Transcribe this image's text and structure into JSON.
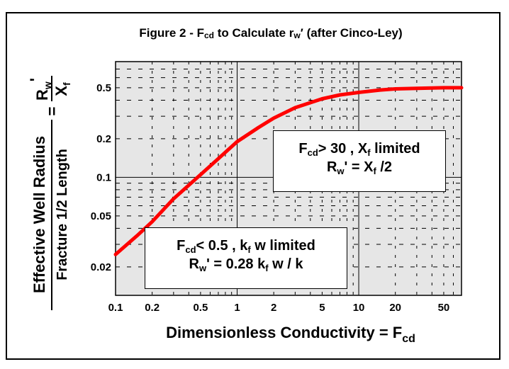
{
  "chart_data": {
    "type": "line",
    "title": {
      "prefix": "Figure 2 -  F",
      "prefix_sub": "cd",
      "middle": " to Calculate r",
      "middle_sub": "w",
      "suffix": "′ (after Cinco-Ley)"
    },
    "xlabel": {
      "main": "Dimensionless Conductivity = F",
      "sub": "cd"
    },
    "ylabel": {
      "line1": "Effective Well Radius",
      "line2": "Fracture 1/2 Length",
      "eq": "=",
      "numerator": "R",
      "numerator_sub": "w",
      "numerator_mark": "'",
      "denominator": "X",
      "denominator_sub": "f"
    },
    "x_scale": "log",
    "y_scale": "log",
    "xlim": [
      0.1,
      70
    ],
    "ylim": [
      0.012,
      0.8
    ],
    "x_ticks": [
      0.1,
      0.2,
      0.5,
      1,
      2,
      5,
      10,
      20,
      50
    ],
    "x_tick_labels": [
      "0.1",
      "0.2",
      "0.5",
      "1",
      "2",
      "5",
      "10",
      "20",
      "50"
    ],
    "y_ticks": [
      0.02,
      0.05,
      0.1,
      0.2,
      0.5
    ],
    "y_tick_labels": [
      "0.02",
      "0.05",
      "0.1",
      "0.2",
      "0.5"
    ],
    "grid": true,
    "series": [
      {
        "color": "#ff0000",
        "x": [
          0.1,
          0.15,
          0.2,
          0.3,
          0.5,
          0.7,
          1,
          1.5,
          2,
          3,
          5,
          7,
          10,
          15,
          20,
          30,
          50,
          70
        ],
        "y": [
          0.025,
          0.035,
          0.045,
          0.068,
          0.105,
          0.14,
          0.19,
          0.245,
          0.29,
          0.35,
          0.41,
          0.44,
          0.46,
          0.48,
          0.49,
          0.495,
          0.5,
          0.5
        ]
      }
    ],
    "annotations": [
      {
        "line1": {
          "a": "F",
          "a_sub": "cd",
          "b": "> 30 ,  X",
          "b_sub": "f",
          "c": "  limited"
        },
        "line2": {
          "a": "R",
          "a_sub": "w",
          "b": "' = X",
          "b_sub": "f",
          "c": " /2"
        }
      },
      {
        "line1": {
          "a": "F",
          "a_sub": "cd",
          "b": "< 0.5 ,  k",
          "b_sub": "f",
          "c": " w limited"
        },
        "line2": {
          "a": "R",
          "a_sub": "w",
          "b": "' = 0.28 k",
          "b_sub": "f",
          "c": " w / k"
        }
      }
    ],
    "colors": {
      "plot_bg": "#e6e6e6",
      "curve": "#ff0000"
    }
  }
}
